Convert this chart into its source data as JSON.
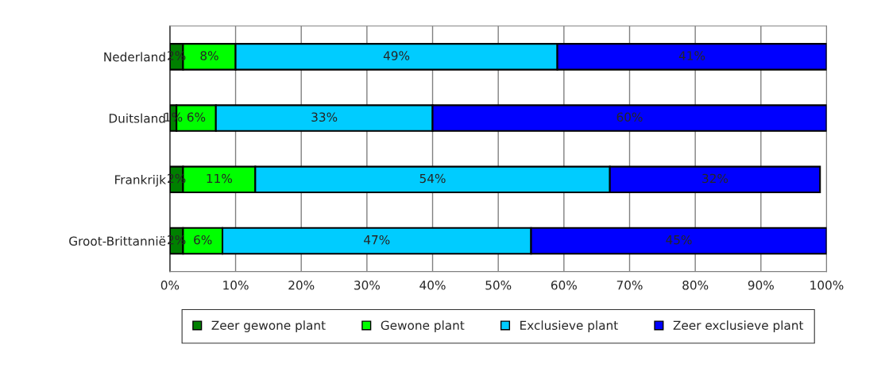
{
  "chart_data": {
    "type": "bar",
    "orientation": "horizontal",
    "stacked": true,
    "categories": [
      "Nederland",
      "Duitsland",
      "Frankrijk",
      "Groot-Brittannië"
    ],
    "series": [
      {
        "name": "Zeer gewone plant",
        "color": "#008000",
        "values": [
          2,
          1,
          2,
          2
        ],
        "value_labels": [
          "2%",
          "1%",
          "2%",
          "2%"
        ]
      },
      {
        "name": "Gewone plant",
        "color": "#00ff00",
        "values": [
          8,
          6,
          11,
          6
        ],
        "value_labels": [
          "8%",
          "6%",
          "11%",
          "6%"
        ]
      },
      {
        "name": "Exclusieve plant",
        "color": "#00ccff",
        "values": [
          49,
          33,
          54,
          47
        ],
        "value_labels": [
          "49%",
          "33%",
          "54%",
          "47%"
        ]
      },
      {
        "name": "Zeer exclusieve plant",
        "color": "#0000ff",
        "values": [
          41,
          60,
          32,
          45
        ],
        "value_labels": [
          "41%",
          "60%",
          "32%",
          "45%"
        ]
      }
    ],
    "xlim": [
      0,
      100
    ],
    "xticks": [
      {
        "value": 0,
        "label": "0%"
      },
      {
        "value": 10,
        "label": "10%"
      },
      {
        "value": 20,
        "label": "20%"
      },
      {
        "value": 30,
        "label": "30%"
      },
      {
        "value": 40,
        "label": "40%"
      },
      {
        "value": 50,
        "label": "50%"
      },
      {
        "value": 60,
        "label": "60%"
      },
      {
        "value": 70,
        "label": "70%"
      },
      {
        "value": 80,
        "label": "80%"
      },
      {
        "value": 90,
        "label": "90%"
      },
      {
        "value": 100,
        "label": "100%"
      }
    ],
    "grid": "x",
    "legend": "bottom"
  }
}
